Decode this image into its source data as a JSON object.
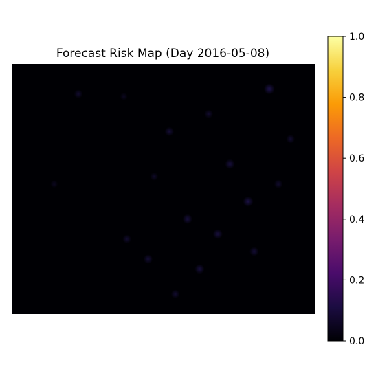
{
  "chart_data": {
    "type": "heatmap",
    "title": "Forecast Risk Map (Day 2016-05-08)",
    "xlabel": "",
    "ylabel": "",
    "axes_visible": false,
    "grid": false,
    "colormap": "inferno",
    "colormap_stops": [
      "#000004",
      "#1b0c41",
      "#4a0c6b",
      "#781c6d",
      "#a52c60",
      "#cf4446",
      "#ed6925",
      "#fb9b06",
      "#f7d13d",
      "#fcffa4"
    ],
    "colorbar": {
      "placement": "right",
      "range": [
        0,
        1
      ],
      "ticks": [
        0.0,
        0.2,
        0.4,
        0.6,
        0.8,
        1.0
      ],
      "tick_labels": [
        "0.0",
        "0.2",
        "0.4",
        "0.6",
        "0.8",
        "1.0"
      ]
    },
    "value_range_observed": [
      0.0,
      0.05
    ],
    "background_value": 0.0,
    "faint_hotspots": [
      {
        "col": 0.22,
        "row": 0.12,
        "value": 0.03
      },
      {
        "col": 0.37,
        "row": 0.13,
        "value": 0.02
      },
      {
        "col": 0.52,
        "row": 0.27,
        "value": 0.035
      },
      {
        "col": 0.65,
        "row": 0.2,
        "value": 0.03
      },
      {
        "col": 0.72,
        "row": 0.4,
        "value": 0.04
      },
      {
        "col": 0.78,
        "row": 0.55,
        "value": 0.045
      },
      {
        "col": 0.85,
        "row": 0.1,
        "value": 0.05
      },
      {
        "col": 0.88,
        "row": 0.48,
        "value": 0.03
      },
      {
        "col": 0.58,
        "row": 0.62,
        "value": 0.04
      },
      {
        "col": 0.45,
        "row": 0.78,
        "value": 0.035
      },
      {
        "col": 0.38,
        "row": 0.7,
        "value": 0.03
      },
      {
        "col": 0.62,
        "row": 0.82,
        "value": 0.04
      },
      {
        "col": 0.8,
        "row": 0.75,
        "value": 0.035
      },
      {
        "col": 0.92,
        "row": 0.3,
        "value": 0.03
      },
      {
        "col": 0.14,
        "row": 0.48,
        "value": 0.02
      },
      {
        "col": 0.54,
        "row": 0.92,
        "value": 0.03
      },
      {
        "col": 0.68,
        "row": 0.68,
        "value": 0.04
      },
      {
        "col": 0.47,
        "row": 0.45,
        "value": 0.025
      }
    ]
  }
}
